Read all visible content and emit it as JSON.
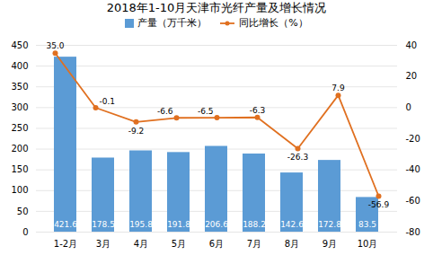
{
  "chart_data": {
    "type": "bar",
    "title": "2018年1-10月天津市光纤产量及增长情况",
    "categories": [
      "1-2月",
      "3月",
      "4月",
      "5月",
      "6月",
      "7月",
      "8月",
      "9月",
      "10月"
    ],
    "series": [
      {
        "name": "产量（万千米）",
        "type": "bar",
        "color": "#5b9bd5",
        "values": [
          421.6,
          178.5,
          195.8,
          191.8,
          206.6,
          188.2,
          142.6,
          172.8,
          83.5
        ]
      },
      {
        "name": "同比增长（%）",
        "type": "line",
        "axis": "y2",
        "color": "#e07020",
        "marker": "circle",
        "values": [
          35.0,
          -0.1,
          -9.2,
          -6.6,
          -6.5,
          -6.3,
          -26.3,
          7.9,
          -56.9
        ],
        "value_labels": [
          "35.0",
          "-0.1",
          "-9.2",
          "-6.6",
          "-6.5",
          "-6.3",
          "-26.3",
          "7.9",
          "-56.9"
        ]
      }
    ],
    "ylim": [
      0.0,
      450.0
    ],
    "yticks": [
      0,
      50,
      100,
      150,
      200,
      250,
      300,
      350,
      400,
      450
    ],
    "y2lim": [
      -80.0,
      40.0
    ],
    "y2ticks": [
      -80,
      -60,
      -40,
      -20,
      0,
      20,
      40
    ],
    "grid": true,
    "legend": "top",
    "data_labels": true
  }
}
